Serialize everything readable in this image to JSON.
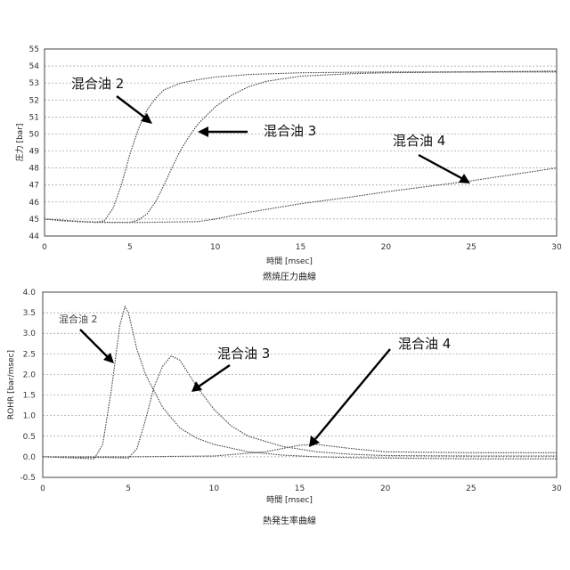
{
  "chart_data": [
    {
      "type": "line",
      "title": "燃焼圧力曲線",
      "xlabel": "時間 [msec]",
      "ylabel": "圧力 [bar]",
      "xlim": [
        0,
        30
      ],
      "ylim": [
        44,
        55
      ],
      "xticks": [
        "0",
        "5",
        "10",
        "15",
        "20",
        "25",
        "30"
      ],
      "yticks": [
        "44",
        "45",
        "46",
        "47",
        "48",
        "49",
        "50",
        "51",
        "52",
        "53",
        "54",
        "55"
      ],
      "grid": true,
      "series": [
        {
          "name": "混合油 2",
          "x": [
            0,
            1,
            2,
            3,
            3.5,
            4,
            4.5,
            5,
            5.5,
            6,
            6.5,
            7,
            8,
            9,
            10,
            12,
            15,
            20,
            25,
            30
          ],
          "y": [
            45.0,
            44.9,
            44.85,
            44.8,
            44.9,
            45.6,
            47.0,
            48.8,
            50.3,
            51.4,
            52.1,
            52.6,
            53.0,
            53.2,
            53.35,
            53.5,
            53.6,
            53.65,
            53.65,
            53.65
          ]
        },
        {
          "name": "混合油 3",
          "x": [
            0,
            2,
            4,
            5,
            5.5,
            6,
            6.5,
            7,
            7.5,
            8,
            8.5,
            9,
            10,
            11,
            12,
            13,
            15,
            18,
            20,
            25,
            30
          ],
          "y": [
            45.0,
            44.85,
            44.8,
            44.8,
            44.95,
            45.3,
            46.0,
            47.0,
            48.1,
            49.1,
            49.9,
            50.6,
            51.6,
            52.3,
            52.8,
            53.1,
            53.4,
            53.55,
            53.6,
            53.65,
            53.7
          ]
        },
        {
          "name": "混合油 4",
          "x": [
            0,
            3,
            6,
            9,
            10,
            12,
            15,
            18,
            20,
            25,
            30
          ],
          "y": [
            45.0,
            44.8,
            44.8,
            44.85,
            45.0,
            45.4,
            45.9,
            46.3,
            46.6,
            47.25,
            48.0
          ]
        }
      ],
      "annotations": [
        "混合油 2",
        "混合油 3",
        "混合油 4"
      ]
    },
    {
      "type": "line",
      "title": "熱発生率曲線",
      "xlabel": "時間 [msec]",
      "ylabel": "ROHR [bar/msec]",
      "xlim": [
        0,
        30
      ],
      "ylim": [
        -0.5,
        4.0
      ],
      "xticks": [
        "0",
        "5",
        "10",
        "15",
        "20",
        "25",
        "30"
      ],
      "yticks": [
        "-0.5",
        "0.0",
        "0.5",
        "1.0",
        "1.5",
        "2.0",
        "2.5",
        "3.0",
        "3.5",
        "4.0"
      ],
      "grid": true,
      "series": [
        {
          "name": "混合油 2",
          "x": [
            0,
            2,
            3,
            3.5,
            4,
            4.5,
            4.8,
            5,
            5.5,
            6,
            7,
            8,
            9,
            10,
            12,
            14,
            16,
            18,
            20,
            25,
            30
          ],
          "y": [
            0.0,
            -0.03,
            -0.05,
            0.3,
            1.6,
            3.2,
            3.65,
            3.5,
            2.6,
            2.0,
            1.2,
            0.7,
            0.45,
            0.3,
            0.12,
            0.04,
            0.0,
            -0.02,
            -0.03,
            -0.05,
            -0.05
          ]
        },
        {
          "name": "混合油 3",
          "x": [
            0,
            4,
            5,
            5.5,
            6,
            6.5,
            7,
            7.5,
            8,
            9,
            10,
            11,
            12,
            14,
            16,
            18,
            20,
            25,
            30
          ],
          "y": [
            0.0,
            -0.02,
            -0.03,
            0.2,
            0.9,
            1.7,
            2.2,
            2.45,
            2.35,
            1.7,
            1.15,
            0.75,
            0.5,
            0.25,
            0.12,
            0.06,
            0.03,
            0.02,
            0.02
          ]
        },
        {
          "name": "混合油 4",
          "x": [
            0,
            5,
            10,
            13,
            15,
            16,
            18,
            20,
            25,
            30
          ],
          "y": [
            0.0,
            0.0,
            0.02,
            0.12,
            0.28,
            0.3,
            0.2,
            0.12,
            0.1,
            0.1
          ]
        }
      ],
      "annotations": [
        "混合油 2",
        "混合油 3",
        "混合油 4"
      ]
    }
  ]
}
